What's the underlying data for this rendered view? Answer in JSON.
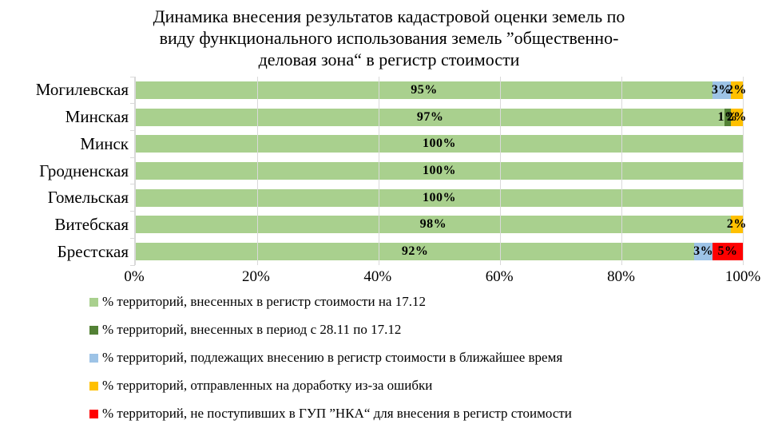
{
  "page": {
    "background": "#FFFFFF",
    "text_color": "#000000"
  },
  "chart_data": {
    "type": "bar",
    "orientation": "horizontal",
    "stacked": true,
    "title": "Динамика внесения результатов кадастровой оценки земель по виду функционального использования земель ”общественно-деловая зона“ в регистр стоимости",
    "title_lines": [
      "Динамика внесения результатов кадастровой оценки земель по",
      "виду функционального использования земель ”общественно-",
      "деловая зона“ в регистр стоимости"
    ],
    "categories": [
      "Могилевская",
      "Минская",
      "Минск",
      "Гродненская",
      "Гомельская",
      "Витебская",
      "Брестская"
    ],
    "series": [
      {
        "name": "% территорий, внесенных в регистр стоимости на 17.12",
        "color": "#A9D08E",
        "values": [
          95,
          97,
          100,
          100,
          100,
          98,
          92
        ]
      },
      {
        "name": "% территорий, внесенных в период с 28.11 по 17.12",
        "color": "#538135",
        "values": [
          0,
          1,
          0,
          0,
          0,
          0,
          0
        ]
      },
      {
        "name": "% территорий, подлежащих внесению в регистр стоимости в ближайшее время",
        "color": "#9DC3E6",
        "values": [
          3,
          0,
          0,
          0,
          0,
          0,
          3
        ]
      },
      {
        "name": "% территорий, отправленных на доработку из-за ошибки",
        "color": "#FFC000",
        "values": [
          2,
          2,
          0,
          0,
          0,
          2,
          0
        ]
      },
      {
        "name": "% территорий, не поступивших в ГУП ”НКА“ для внесения в регистр стоимости",
        "color": "#FF0000",
        "values": [
          0,
          0,
          0,
          0,
          0,
          0,
          5
        ]
      }
    ],
    "data_label_suffix": "%",
    "x_ticks": [
      "0%",
      "20%",
      "40%",
      "60%",
      "80%",
      "100%"
    ],
    "xlim": [
      0,
      100
    ],
    "grid": true,
    "gridline_color": "#D9D9D9",
    "axis_line_color": "#D9D9D9",
    "legend_position": "bottom"
  }
}
